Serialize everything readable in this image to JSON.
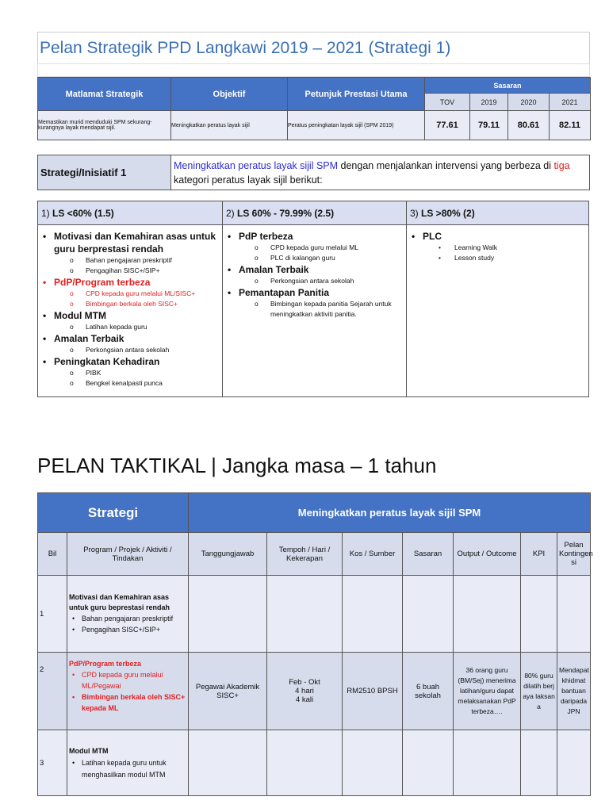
{
  "title": "Pelan Strategik PPD Langkawi 2019 – 2021 (Strategi 1)",
  "summary": {
    "headers": {
      "matlamat": "Matlamat Strategik",
      "objektif": "Objektif",
      "ppu": "Petunjuk Prestasi Utama",
      "sasaran": "Sasaran",
      "years": [
        "TOV",
        "2019",
        "2020",
        "2021"
      ]
    },
    "row": {
      "matlamat": "Memastikan murid menduduki SPM sekurang-kurangnya layak mendapat sijil.",
      "objektif": "Meningkatkan peratus layak sijil",
      "ppu": "Peratus peningkatan layak sijil (SPM 2019)",
      "values": [
        "77.61",
        "79.11",
        "80.61",
        "82.11"
      ]
    }
  },
  "strategy": {
    "label": "Strategi/Inisiatif 1",
    "highlight": "Meningkatkan peratus layak sijil SPM",
    "text1": " dengan menjalankan intervensi yang berbeza di ",
    "red": "tiga",
    "text2": " kategori peratus layak sijil berikut:"
  },
  "categories": [
    {
      "num": "1)",
      "label": "LS <60% (1.5)"
    },
    {
      "num": "2)",
      "label": "LS 60% - 79.99% (2.5)"
    },
    {
      "num": "3)",
      "label": "LS >80% (2)"
    }
  ],
  "col1": [
    {
      "t": "Motivasi dan Kemahiran asas untuk guru berprestasi rendah",
      "subs": [
        "Bahan pengajaran preskriptif",
        "Pengagihan SISC+/SIP+"
      ]
    },
    {
      "t": "PdP/Program terbeza",
      "subs": [
        "CPD kepada guru melalui ML/SISC+",
        "Bimbingan berkala oleh SISC+"
      ]
    },
    {
      "t": "Modul MTM",
      "subs": [
        "Latihan kepada guru"
      ]
    },
    {
      "t": "Amalan Terbaik",
      "subs": [
        "Perkongsian antara sekolah"
      ]
    },
    {
      "t": "Peningkatan Kehadiran",
      "subs": [
        "PIBK",
        "Bengkel kenalpasti punca"
      ]
    }
  ],
  "col2": [
    {
      "t": "PdP terbeza",
      "subs": [
        "CPD kepada guru melalui ML",
        "PLC di kalangan guru"
      ]
    },
    {
      "t": "Amalan Terbaik",
      "subs": [
        "Perkongsian antara sekolah"
      ]
    },
    {
      "t": "Pemantapan Panitia",
      "subs": [
        "Bimbingan kepada panitia Sejarah untuk meningkatkan aktiviti panitia."
      ]
    }
  ],
  "col3": [
    {
      "t": "PLC",
      "subs": [
        "Learning Walk",
        "Lesson study"
      ]
    }
  ],
  "tactical": {
    "heading": "PELAN TAKTIKAL | Jangka masa – 1 tahun",
    "strategi_label": "Strategi",
    "strategi_value": "Meningkatkan peratus layak sijil SPM",
    "columns": [
      "Bil",
      "Program / Projek / Aktiviti / Tindakan",
      "Tanggungjawab",
      "Tempoh / Hari / Kekerapan",
      "Kos / Sumber",
      "Sasaran",
      "Output / Outcome",
      "KPI",
      "Pelan Kontingen si"
    ],
    "rows": [
      {
        "bil": "1",
        "title": "Motivasi dan Kemahiran asas untuk guru beprestasi rendah",
        "items": [
          "Bahan pengajaran preskriptif",
          "Pengagihan SISC+/SIP+"
        ],
        "tanggung": "",
        "tempoh": "",
        "kos": "",
        "sasaran": "",
        "output": "",
        "kpi": "",
        "pelan": ""
      },
      {
        "bil": "2",
        "title": "PdP/Program terbeza",
        "items": [
          "CPD kepada guru melalui ML/Pegawai",
          "Bimbingan berkala oleh SISC+ kepada ML"
        ],
        "tanggung": "Pegawai Akademik SISC+",
        "tempoh": "Feb - Okt\n4 hari\n4 kali",
        "kos": "RM2510 BPSH",
        "sasaran": "6 buah sekolah",
        "output": "36 orang guru (BM/Sej) menerima latihan/guru dapat melaksanakan PdP terbeza….",
        "kpi": "80% guru dilatih berjaya laksana",
        "pelan": "Mendapat khidmat bantuan daripada JPN"
      },
      {
        "bil": "3",
        "title": "Modul MTM",
        "items": [
          "Latihan kepada guru untuk menghasilkan modul MTM"
        ],
        "tanggung": "",
        "tempoh": "",
        "kos": "",
        "sasaran": "",
        "output": "",
        "kpi": "",
        "pelan": ""
      }
    ]
  },
  "colors": {
    "header_blue": "#4472c4",
    "title_blue": "#3a6fb5",
    "highlight_blue": "#2b2bd0",
    "red": "#e02020"
  }
}
